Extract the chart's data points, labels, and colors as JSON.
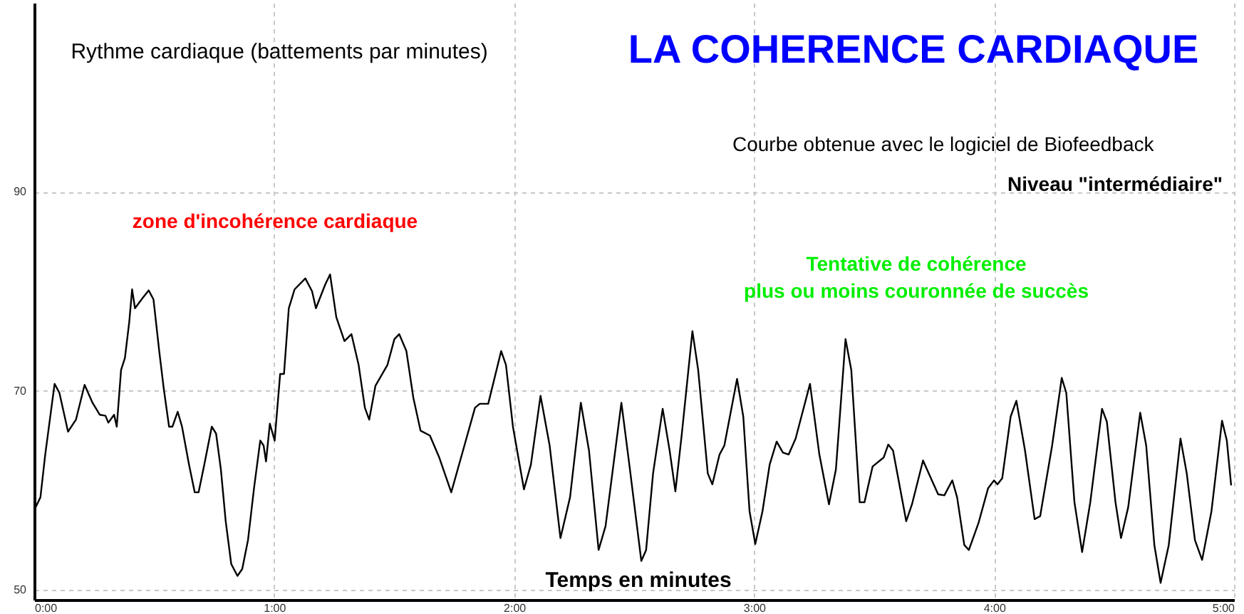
{
  "chart_data": {
    "type": "line",
    "title": "LA COHERENCE CARDIAQUE",
    "subtitle": "Courbe obtenue avec le logiciel de Biofeedback",
    "ylabel": "Rythme cardiaque (battements par minutes)",
    "xlabel": "Temps en minutes",
    "annotations": [
      "zone d'incohérence cardiaque",
      "Tentative de cohérence\nplus ou moins couronnée de succès",
      "Niveau \"intermédiaire\""
    ],
    "x": [
      0.006,
      0.026,
      0.046,
      0.085,
      0.105,
      0.141,
      0.174,
      0.21,
      0.243,
      0.273,
      0.297,
      0.309,
      0.333,
      0.344,
      0.362,
      0.378,
      0.396,
      0.408,
      0.42,
      0.451,
      0.477,
      0.497,
      0.521,
      0.54,
      0.562,
      0.576,
      0.598,
      0.616,
      0.645,
      0.669,
      0.685,
      0.709,
      0.74,
      0.758,
      0.778,
      0.798,
      0.821,
      0.847,
      0.867,
      0.891,
      0.916,
      0.942,
      0.956,
      0.966,
      0.982,
      1.002,
      1.025,
      1.041,
      1.061,
      1.085,
      1.13,
      1.158,
      1.174,
      1.213,
      1.233,
      1.259,
      1.293,
      1.322,
      1.352,
      1.378,
      1.396,
      1.422,
      1.472,
      1.501,
      1.521,
      1.551,
      1.58,
      1.61,
      1.649,
      1.688,
      1.738,
      1.787,
      1.837,
      1.857,
      1.892,
      1.946,
      1.966,
      1.995,
      2.041,
      2.07,
      2.11,
      2.148,
      2.193,
      2.233,
      2.278,
      2.312,
      2.352,
      2.381,
      2.447,
      2.48,
      2.53,
      2.55,
      2.579,
      2.619,
      2.648,
      2.672,
      2.698,
      2.743,
      2.767,
      2.807,
      2.826,
      2.856,
      2.876,
      2.929,
      2.955,
      2.981,
      3.005,
      3.035,
      3.065,
      3.094,
      3.12,
      3.144,
      3.173,
      3.233,
      3.272,
      3.312,
      3.341,
      3.381,
      3.405,
      3.44,
      3.46,
      3.494,
      3.54,
      3.559,
      3.579,
      3.634,
      3.658,
      3.704,
      3.737,
      3.767,
      3.793,
      3.826,
      3.846,
      3.876,
      3.895,
      3.935,
      3.975,
      4.0,
      4.014,
      4.034,
      4.069,
      4.093,
      4.129,
      4.169,
      4.192,
      4.242,
      4.282,
      4.301,
      4.335,
      4.367,
      4.401,
      4.45,
      4.47,
      4.506,
      4.529,
      4.559,
      4.609,
      4.634,
      4.668,
      4.694,
      4.728,
      4.777,
      4.803,
      4.837,
      4.867,
      4.906,
      4.95,
      4.97,
      4.988
    ],
    "series": [
      {
        "color": "#000000",
        "values": [
          58.3,
          59.3,
          63.6,
          70.7,
          69.8,
          65.9,
          67.1,
          70.6,
          68.8,
          67.6,
          67.5,
          66.8,
          67.6,
          66.4,
          72.1,
          73.3,
          76.9,
          80.2,
          78.3,
          79.3,
          80.1,
          79.2,
          74.0,
          70.2,
          66.4,
          66.4,
          67.9,
          66.4,
          62.6,
          59.8,
          59.8,
          62.6,
          66.4,
          65.7,
          62.1,
          56.9,
          52.6,
          51.4,
          52.1,
          55.0,
          60.2,
          65.0,
          64.5,
          62.9,
          66.7,
          65.0,
          71.7,
          71.7,
          78.3,
          80.2,
          81.3,
          80.0,
          78.3,
          80.7,
          81.7,
          77.4,
          75.0,
          75.7,
          72.6,
          68.3,
          67.1,
          70.5,
          72.6,
          75.2,
          75.7,
          74.0,
          69.3,
          66.0,
          65.5,
          63.3,
          59.8,
          64.0,
          68.3,
          68.7,
          68.7,
          74.0,
          72.6,
          66.4,
          60.1,
          62.6,
          69.5,
          64.5,
          55.2,
          59.3,
          68.8,
          64.0,
          54.0,
          56.4,
          68.8,
          62.6,
          52.9,
          54.0,
          61.7,
          68.2,
          64.0,
          59.9,
          65.5,
          76.0,
          72.1,
          61.7,
          60.6,
          63.6,
          64.5,
          71.2,
          67.4,
          57.9,
          54.6,
          57.9,
          62.6,
          64.9,
          63.8,
          63.6,
          65.2,
          70.7,
          63.6,
          58.6,
          62.1,
          75.2,
          72.1,
          58.8,
          58.8,
          62.4,
          63.3,
          64.6,
          64.0,
          56.9,
          58.6,
          63.0,
          61.2,
          59.6,
          59.5,
          61.0,
          59.3,
          54.5,
          54.0,
          56.7,
          60.2,
          61.0,
          60.6,
          61.2,
          67.4,
          69.0,
          64.0,
          57.1,
          57.4,
          64.5,
          71.3,
          69.8,
          58.8,
          53.8,
          58.8,
          68.2,
          66.9,
          58.8,
          55.2,
          58.3,
          67.8,
          64.5,
          54.5,
          50.7,
          54.5,
          65.2,
          61.7,
          55.0,
          53.0,
          57.9,
          67.0,
          65.0,
          60.5
        ]
      }
    ],
    "xlim": [
      0,
      5
    ],
    "xticks": [
      {
        "value": 0,
        "label": "0:00"
      },
      {
        "value": 1,
        "label": "1:00"
      },
      {
        "value": 2,
        "label": "2:00"
      },
      {
        "value": 3,
        "label": "3:00"
      },
      {
        "value": 4,
        "label": "4:00"
      },
      {
        "value": 5,
        "label": "5:00"
      }
    ],
    "ylim": [
      49,
      109
    ],
    "yticks": [
      50,
      70,
      90
    ],
    "grid": true,
    "line_style": "solid"
  }
}
